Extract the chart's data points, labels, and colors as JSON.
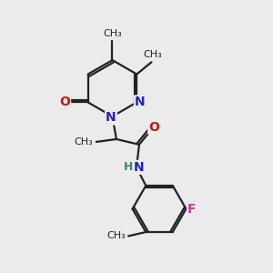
{
  "bg_color": "#ebebeb",
  "bond_color": "#222222",
  "N_color": "#2222bb",
  "O_color": "#cc1111",
  "F_color": "#cc33aa",
  "H_color": "#338866",
  "lw": 1.6,
  "font_size_atom": 10,
  "font_size_methyl": 8,
  "xlim": [
    0,
    10
  ],
  "ylim": [
    0,
    10
  ]
}
